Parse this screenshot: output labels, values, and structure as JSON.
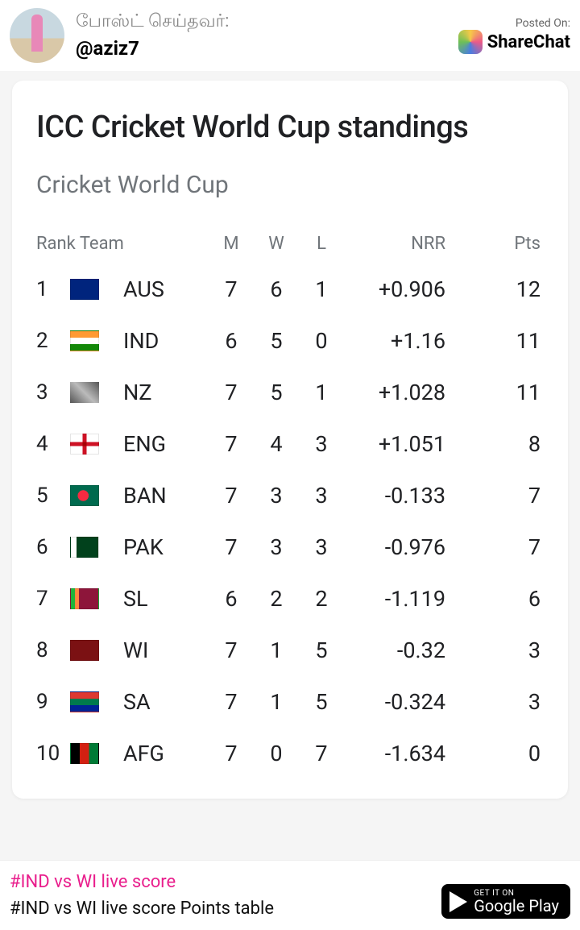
{
  "header": {
    "posted_by_label": "போஸ்ட் செய்தவர்:",
    "username": "@aziz7",
    "posted_on_label": "Posted On:",
    "platform": "ShareChat"
  },
  "card": {
    "title": "ICC Cricket World Cup standings",
    "subtitle": "Cricket World Cup",
    "columns": {
      "rank_team": "Rank  Team",
      "m": "M",
      "w": "W",
      "l": "L",
      "nrr": "NRR",
      "pts": "Pts"
    },
    "rows": [
      {
        "rank": "1",
        "code": "AUS",
        "m": "7",
        "w": "6",
        "l": "1",
        "nrr": "+0.906",
        "pts": "12",
        "flag": "linear-gradient(#00247d,#00247d)"
      },
      {
        "rank": "2",
        "code": "IND",
        "m": "6",
        "w": "5",
        "l": "0",
        "nrr": "+1.16",
        "pts": "11",
        "flag": "linear-gradient(#ff9933 0 33%,#fff 33% 66%,#138808 66%)"
      },
      {
        "rank": "3",
        "code": "NZ",
        "m": "7",
        "w": "5",
        "l": "1",
        "nrr": "+1.028",
        "pts": "11",
        "flag": "linear-gradient(45deg,#555,#bbb,#555)"
      },
      {
        "rank": "4",
        "code": "ENG",
        "m": "7",
        "w": "4",
        "l": "3",
        "nrr": "+1.051",
        "pts": "8",
        "flag": "linear-gradient(#fff,#fff)"
      },
      {
        "rank": "5",
        "code": "BAN",
        "m": "7",
        "w": "3",
        "l": "3",
        "nrr": "-0.133",
        "pts": "7",
        "flag": "radial-gradient(circle at 45% 50%, #f42a41 0 30%, #006a4e 31%)"
      },
      {
        "rank": "6",
        "code": "PAK",
        "m": "7",
        "w": "3",
        "l": "3",
        "nrr": "-0.976",
        "pts": "7",
        "flag": "linear-gradient(90deg,#fff 0 20%,#01411c 20%)"
      },
      {
        "rank": "7",
        "code": "SL",
        "m": "6",
        "w": "2",
        "l": "2",
        "nrr": "-1.119",
        "pts": "6",
        "flag": "linear-gradient(90deg,#1eb53a 0 15%,#ff883e 15% 30%,#8d153a 30%)"
      },
      {
        "rank": "8",
        "code": "WI",
        "m": "7",
        "w": "1",
        "l": "5",
        "nrr": "-0.32",
        "pts": "3",
        "flag": "linear-gradient(#7b1113,#7b1113)"
      },
      {
        "rank": "9",
        "code": "SA",
        "m": "7",
        "w": "1",
        "l": "5",
        "nrr": "-0.324",
        "pts": "3",
        "flag": "linear-gradient(#de3831 0 33%,#007a4d 33% 66%,#002395 66%)"
      },
      {
        "rank": "10",
        "code": "AFG",
        "m": "7",
        "w": "0",
        "l": "7",
        "nrr": "-1.634",
        "pts": "0",
        "flag": "linear-gradient(90deg,#000 0 33%,#d32011 33% 66%,#007a36 66%)"
      }
    ],
    "row4_cross_h": "linear-gradient(#fff 0 40%, #ce1124 40% 60%, #fff 60%)",
    "row4_cross_v": "linear-gradient(90deg,#fff 0 42%, #ce1124 42% 58%, #fff 58%)"
  },
  "footer": {
    "hashtag1": "#IND vs WI live score",
    "hashtag2": "#IND vs WI live score   Points table",
    "gplay_small": "GET IT ON",
    "gplay_big": "Google Play"
  }
}
